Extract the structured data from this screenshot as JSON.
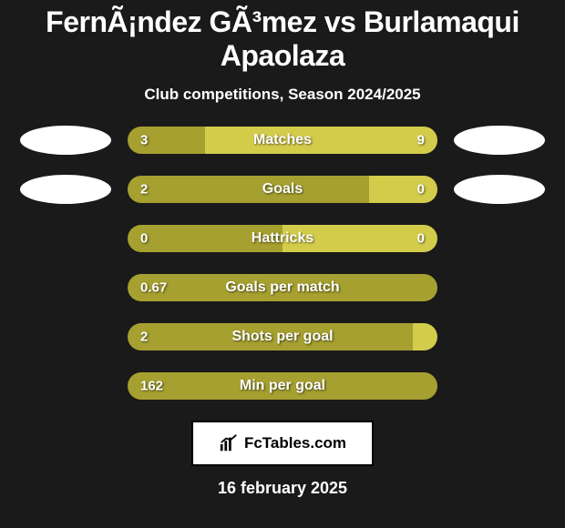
{
  "title": "FernÃ¡ndez GÃ³mez vs Burlamaqui Apaolaza",
  "subtitle": "Club competitions, Season 2024/2025",
  "colors": {
    "left": "#a6a030",
    "right": "#d3cc4b",
    "bg": "#1a1a1a",
    "text": "#ffffff"
  },
  "bars": [
    {
      "label": "Matches",
      "left": "3",
      "right": "9",
      "leftPct": 25,
      "rightPct": 75,
      "showLeftPhoto": true,
      "showRightPhoto": true
    },
    {
      "label": "Goals",
      "left": "2",
      "right": "0",
      "leftPct": 78,
      "rightPct": 22,
      "showLeftPhoto": true,
      "showRightPhoto": true
    },
    {
      "label": "Hattricks",
      "left": "0",
      "right": "0",
      "leftPct": 50,
      "rightPct": 50,
      "showLeftPhoto": false,
      "showRightPhoto": false
    },
    {
      "label": "Goals per match",
      "left": "0.67",
      "right": "",
      "leftPct": 100,
      "rightPct": 0,
      "showLeftPhoto": false,
      "showRightPhoto": false
    },
    {
      "label": "Shots per goal",
      "left": "2",
      "right": "",
      "leftPct": 92,
      "rightPct": 8,
      "showLeftPhoto": false,
      "showRightPhoto": false
    },
    {
      "label": "Min per goal",
      "left": "162",
      "right": "",
      "leftPct": 100,
      "rightPct": 0,
      "showLeftPhoto": false,
      "showRightPhoto": false
    }
  ],
  "brand": "FcTables.com",
  "date": "16 february 2025"
}
